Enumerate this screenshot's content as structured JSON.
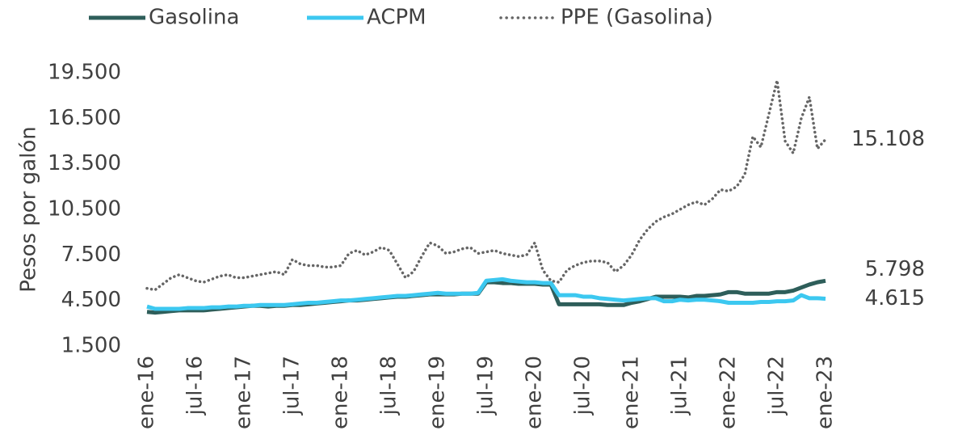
{
  "chart_data": {
    "type": "line",
    "y_label": "Pesos por galón",
    "categories": [
      "ene-16",
      null,
      null,
      null,
      null,
      null,
      "jul-16",
      null,
      null,
      null,
      null,
      null,
      "ene-17",
      null,
      null,
      null,
      null,
      null,
      "jul-17",
      null,
      null,
      null,
      null,
      null,
      "ene-18",
      null,
      null,
      null,
      null,
      null,
      "jul-18",
      null,
      null,
      null,
      null,
      null,
      "ene-19",
      null,
      null,
      null,
      null,
      null,
      "jul-19",
      null,
      null,
      null,
      null,
      null,
      "ene-20",
      null,
      null,
      null,
      null,
      null,
      "jul-20",
      null,
      null,
      null,
      null,
      null,
      "ene-21",
      null,
      null,
      null,
      null,
      null,
      "jul-21",
      null,
      null,
      null,
      null,
      null,
      "ene-22",
      null,
      null,
      null,
      null,
      null,
      "jul-22",
      null,
      null,
      null,
      null,
      null,
      "ene-23"
    ],
    "series": [
      {
        "name": "Gasolina",
        "color": "#2e5e5a",
        "style": "solid",
        "values": [
          3750,
          3700,
          3750,
          3800,
          3850,
          3850,
          3850,
          3850,
          3900,
          3950,
          4000,
          4050,
          4100,
          4150,
          4150,
          4100,
          4150,
          4150,
          4200,
          4200,
          4250,
          4300,
          4350,
          4400,
          4450,
          4500,
          4500,
          4550,
          4600,
          4650,
          4700,
          4750,
          4750,
          4800,
          4850,
          4900,
          4900,
          4900,
          4900,
          4950,
          4950,
          4950,
          5700,
          5700,
          5650,
          5650,
          5600,
          5600,
          5600,
          5550,
          5550,
          4250,
          4250,
          4250,
          4250,
          4250,
          4250,
          4200,
          4200,
          4200,
          4350,
          4450,
          4600,
          4750,
          4750,
          4750,
          4750,
          4700,
          4800,
          4800,
          4850,
          4900,
          5050,
          5050,
          4950,
          4950,
          4950,
          4950,
          5050,
          5050,
          5150,
          5350,
          5550,
          5700,
          5798
        ],
        "value_labels": [
          null,
          null,
          null,
          null,
          null,
          null,
          null,
          null,
          null,
          null,
          null,
          null,
          null,
          null,
          null,
          null,
          null,
          null,
          null,
          null,
          null,
          null,
          null,
          null,
          null,
          null,
          null,
          null,
          null,
          null,
          null,
          null,
          null,
          null,
          null,
          null,
          null,
          null,
          null,
          null,
          null,
          null,
          null,
          null,
          null,
          null,
          null,
          null,
          null,
          null,
          null,
          null,
          null,
          null,
          null,
          null,
          null,
          null,
          null,
          null,
          null,
          null,
          null,
          null,
          null,
          null,
          null,
          null,
          null,
          null,
          null,
          null,
          null,
          null,
          null,
          null,
          null,
          null,
          null,
          null,
          null,
          null,
          null,
          null,
          "5.798"
        ]
      },
      {
        "name": "ACPM",
        "color": "#3cc8f0",
        "style": "solid",
        "values": [
          4100,
          3950,
          3950,
          3950,
          3950,
          4000,
          4000,
          4000,
          4050,
          4050,
          4100,
          4100,
          4150,
          4150,
          4200,
          4200,
          4200,
          4200,
          4250,
          4300,
          4350,
          4350,
          4400,
          4450,
          4500,
          4500,
          4550,
          4600,
          4650,
          4700,
          4750,
          4800,
          4800,
          4850,
          4900,
          4950,
          5000,
          4950,
          4950,
          4950,
          4950,
          5000,
          5800,
          5850,
          5900,
          5800,
          5750,
          5700,
          5700,
          5650,
          5650,
          4850,
          4850,
          4850,
          4750,
          4750,
          4650,
          4600,
          4550,
          4500,
          4550,
          4600,
          4650,
          4650,
          4450,
          4450,
          4550,
          4500,
          4550,
          4550,
          4500,
          4450,
          4350,
          4350,
          4350,
          4350,
          4400,
          4400,
          4450,
          4450,
          4500,
          4850,
          4650,
          4650,
          4615
        ],
        "value_labels": [
          null,
          null,
          null,
          null,
          null,
          null,
          null,
          null,
          null,
          null,
          null,
          null,
          null,
          null,
          null,
          null,
          null,
          null,
          null,
          null,
          null,
          null,
          null,
          null,
          null,
          null,
          null,
          null,
          null,
          null,
          null,
          null,
          null,
          null,
          null,
          null,
          null,
          null,
          null,
          null,
          null,
          null,
          null,
          null,
          null,
          null,
          null,
          null,
          null,
          null,
          null,
          null,
          null,
          null,
          null,
          null,
          null,
          null,
          null,
          null,
          null,
          null,
          null,
          null,
          null,
          null,
          null,
          null,
          null,
          null,
          null,
          null,
          null,
          null,
          null,
          null,
          null,
          null,
          null,
          null,
          null,
          null,
          null,
          null,
          "4.615"
        ]
      },
      {
        "name": "PPE (Gasolina)",
        "color": "#666666",
        "style": "dotted",
        "values": [
          5300,
          5200,
          5600,
          6000,
          6200,
          6000,
          5800,
          5700,
          5900,
          6100,
          6200,
          6000,
          6000,
          6100,
          6200,
          6300,
          6400,
          6200,
          7200,
          6900,
          6800,
          6800,
          6700,
          6700,
          6800,
          7600,
          7800,
          7500,
          7700,
          8000,
          7800,
          6900,
          6000,
          6400,
          7400,
          8300,
          8100,
          7600,
          7700,
          7900,
          8000,
          7600,
          7700,
          7800,
          7600,
          7500,
          7400,
          7500,
          8300,
          6500,
          5800,
          5700,
          6500,
          6800,
          7000,
          7100,
          7100,
          7000,
          6400,
          6800,
          7500,
          8500,
          9200,
          9700,
          10000,
          10200,
          10500,
          10800,
          11000,
          10800,
          11200,
          11800,
          11700,
          12000,
          12800,
          15300,
          14600,
          16800,
          19000,
          15000,
          14200,
          16500,
          17900,
          14500,
          15108
        ],
        "value_labels": [
          null,
          null,
          null,
          null,
          null,
          null,
          null,
          null,
          null,
          null,
          null,
          null,
          null,
          null,
          null,
          null,
          null,
          null,
          null,
          null,
          null,
          null,
          null,
          null,
          null,
          null,
          null,
          null,
          null,
          null,
          null,
          null,
          null,
          null,
          null,
          null,
          null,
          null,
          null,
          null,
          null,
          null,
          null,
          null,
          null,
          null,
          null,
          null,
          null,
          null,
          null,
          null,
          null,
          null,
          null,
          null,
          null,
          null,
          null,
          null,
          null,
          null,
          null,
          null,
          null,
          null,
          null,
          null,
          null,
          null,
          null,
          null,
          null,
          null,
          null,
          null,
          null,
          null,
          null,
          null,
          null,
          null,
          null,
          null,
          "15.108"
        ]
      }
    ],
    "ylim": [
      1500,
      19500
    ],
    "yticks": [
      {
        "value": 1500,
        "label": "1.500"
      },
      {
        "value": 4500,
        "label": "4.500"
      },
      {
        "value": 7500,
        "label": "7.500"
      },
      {
        "value": 10500,
        "label": "10.500"
      },
      {
        "value": 13500,
        "label": "13.500"
      },
      {
        "value": 16500,
        "label": "16.500"
      },
      {
        "value": 19500,
        "label": "19.500"
      }
    ],
    "grid": false,
    "legend": "top"
  }
}
